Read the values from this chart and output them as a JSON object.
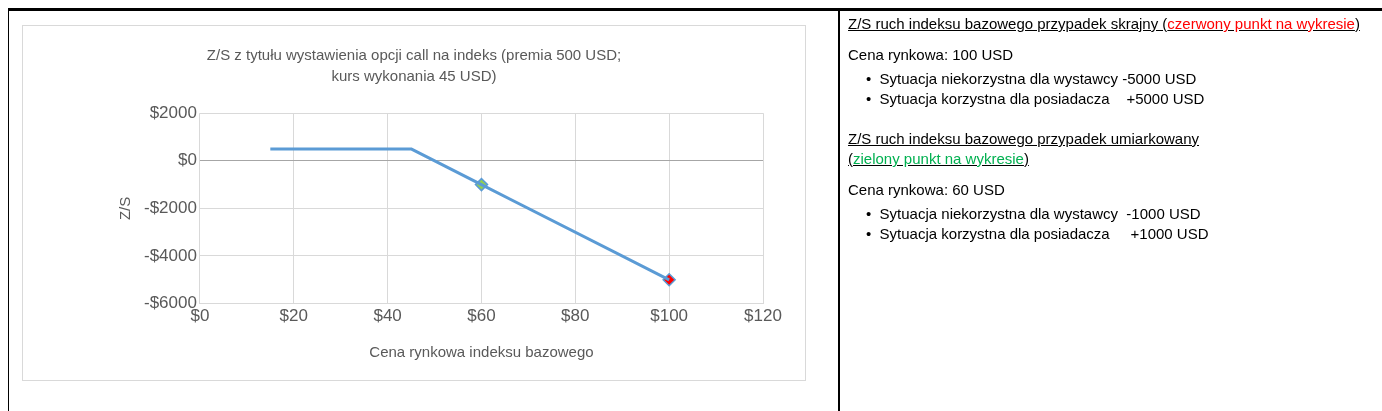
{
  "chart_data": [
    {
      "type": "line",
      "title": "Z/S z tytułu wystawienia opcji call na indeks (premia 500 USD; kurs wykonania 45 USD)",
      "xlabel": "Cena rynkowa indeksu bazowego",
      "ylabel": "Z/S",
      "xlim": [
        0,
        120
      ],
      "xticks": [
        {
          "value": 0,
          "label": "$0"
        },
        {
          "value": 20,
          "label": "$20"
        },
        {
          "value": 40,
          "label": "$40"
        },
        {
          "value": 60,
          "label": "$60"
        },
        {
          "value": 80,
          "label": "$80"
        },
        {
          "value": 100,
          "label": "$100"
        },
        {
          "value": 120,
          "label": "$120"
        }
      ],
      "ylim": [
        -6000,
        2000
      ],
      "yticks": [
        {
          "value": -6000,
          "label": "-$6000"
        },
        {
          "value": -4000,
          "label": "-$4000"
        },
        {
          "value": -2000,
          "label": "-$2000"
        },
        {
          "value": 0,
          "label": "$0"
        },
        {
          "value": 2000,
          "label": "$2000"
        }
      ],
      "grid": true,
      "legend": false,
      "series": [
        {
          "type": "line",
          "color": "#5b9bd5",
          "x": [
            15,
            45,
            60,
            100
          ],
          "values": [
            500,
            500,
            -1000,
            -5000
          ],
          "marker": "none",
          "line_style": "solid"
        },
        {
          "type": "scatter",
          "color": "#92d050",
          "x": [
            60
          ],
          "values": [
            -1000
          ],
          "marker": "diamond"
        },
        {
          "type": "scatter",
          "color": "#ff0000",
          "x": [
            100
          ],
          "values": [
            -5000
          ],
          "marker": "diamond"
        }
      ]
    },
    {
      "type": "other",
      "annotations": [
        "Z/S ruch indeksu bazowego przypadek skrajny (",
        "czerwony punkt na wykresie",
        ")",
        "Cena rynkowa: 100 USD",
        "•  Sytuacja niekorzystna dla wystawcy -5000 USD",
        "•  Sytuacja korzystna dla posiadacza    +5000 USD",
        "Z/S ruch indeksu bazowego przypadek umiarkowany",
        "(",
        "zielony punkt na wykresie",
        ")",
        "Cena rynkowa: 60 USD",
        "•  Sytuacja niekorzystna dla wystawcy  -1000 USD",
        "•  Sytuacja korzystna dla posiadacza     +1000 USD"
      ],
      "colors": [
        null,
        "#ff0000",
        null,
        null,
        null,
        null,
        null,
        null,
        "#00b050",
        null,
        null,
        null,
        null
      ]
    }
  ]
}
